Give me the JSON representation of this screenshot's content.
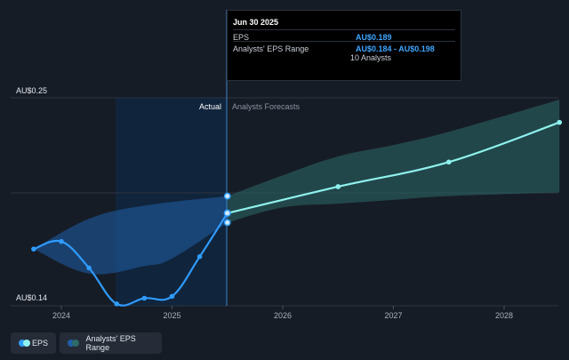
{
  "chart_data": {
    "type": "line",
    "y_tick_labels": [
      "AU$0.25",
      "AU$0.14"
    ],
    "ylim": [
      0.14,
      0.25
    ],
    "x_tick_labels": [
      "2024",
      "2025",
      "2026",
      "2027",
      "2028"
    ],
    "region_labels": {
      "actual": "Actual",
      "forecast": "Analysts Forecasts"
    },
    "series": [
      {
        "name": "EPS",
        "points": [
          {
            "x": 2023.75,
            "y": 0.17
          },
          {
            "x": 2024.0,
            "y": 0.174
          },
          {
            "x": 2024.25,
            "y": 0.16
          },
          {
            "x": 2024.5,
            "y": 0.141
          },
          {
            "x": 2024.75,
            "y": 0.144
          },
          {
            "x": 2025.0,
            "y": 0.145
          },
          {
            "x": 2025.25,
            "y": 0.166
          },
          {
            "x": 2025.5,
            "y": 0.189
          }
        ],
        "forecast": [
          {
            "x": 2025.5,
            "y": 0.189
          },
          {
            "x": 2026.5,
            "y": 0.203
          },
          {
            "x": 2027.5,
            "y": 0.216
          },
          {
            "x": 2028.5,
            "y": 0.237
          }
        ]
      },
      {
        "name": "Analysts' EPS Range",
        "past_upper": [
          [
            2023.75,
            0.17
          ],
          [
            2024.25,
            0.186
          ],
          [
            2024.75,
            0.193
          ],
          [
            2025.5,
            0.198
          ]
        ],
        "past_lower": [
          [
            2023.75,
            0.17
          ],
          [
            2024.25,
            0.157
          ],
          [
            2024.75,
            0.161
          ],
          [
            2025.0,
            0.165
          ],
          [
            2025.5,
            0.184
          ]
        ],
        "future_upper": [
          [
            2025.5,
            0.198
          ],
          [
            2026.0,
            0.209
          ],
          [
            2026.5,
            0.219
          ],
          [
            2027.0,
            0.225
          ],
          [
            2027.5,
            0.232
          ],
          [
            2028.5,
            0.249
          ]
        ],
        "future_lower": [
          [
            2025.5,
            0.184
          ],
          [
            2026.0,
            0.192
          ],
          [
            2026.5,
            0.194
          ],
          [
            2027.0,
            0.196
          ],
          [
            2027.5,
            0.198
          ],
          [
            2028.5,
            0.2
          ]
        ],
        "range_markers": [
          [
            2025.5,
            0.198
          ],
          [
            2025.5,
            0.184
          ]
        ]
      }
    ],
    "grid": true,
    "colors": {
      "eps_actual": "#2f9bff",
      "eps_forecast": "#8ff2ee",
      "range_past": "#1f5ea8",
      "range_future": "#2e6b68",
      "background": "#161c26"
    }
  },
  "tooltip": {
    "date": "Jun 30 2025",
    "rows": [
      {
        "label": "EPS",
        "value": "AU$0.189"
      },
      {
        "label": "Analysts' EPS Range",
        "value": "AU$0.184 - AU$0.198"
      }
    ],
    "analysts": "10 Analysts"
  },
  "legend": [
    {
      "label": "EPS",
      "colors": [
        "#2f9bff",
        "#8ff2ee"
      ]
    },
    {
      "label": "Analysts' EPS Range",
      "colors": [
        "#1f5ea8",
        "#2e6b68"
      ]
    }
  ]
}
